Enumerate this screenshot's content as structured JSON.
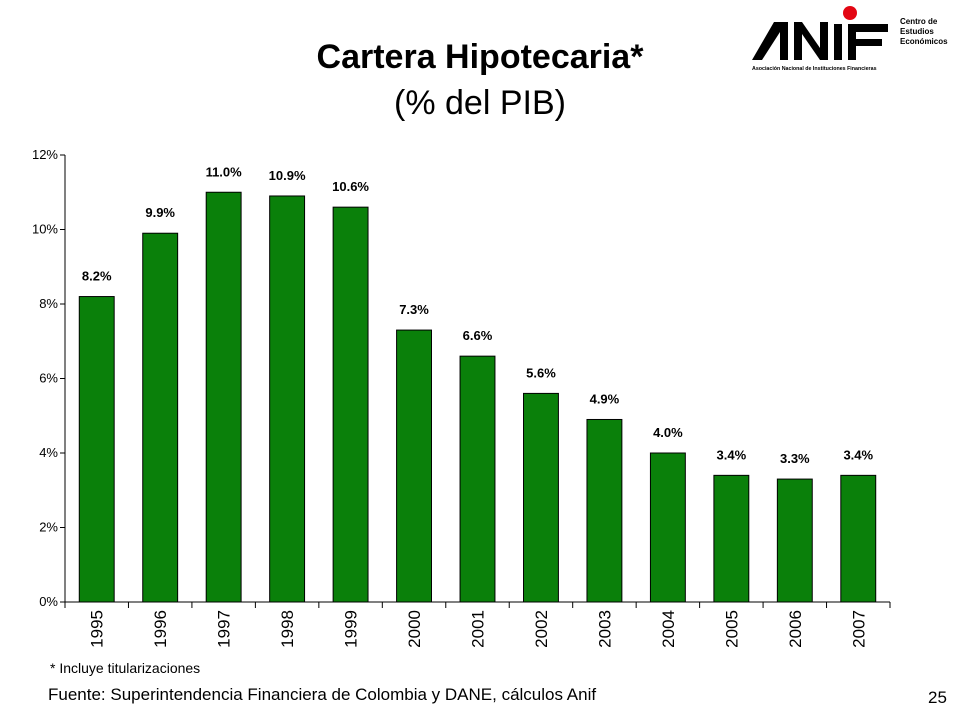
{
  "header": {
    "title": "Cartera Hipotecaria*",
    "subtitle": "(% del PIB)"
  },
  "logo": {
    "name": "ANIF",
    "tagline": "Asociación Nacional de Instituciones Financieras",
    "unit_line1": "Centro de",
    "unit_line2": "Estudios",
    "unit_line3": "Económicos",
    "dot_color": "#e30613"
  },
  "chart_data": {
    "type": "bar",
    "title": "Cartera Hipotecaria*",
    "subtitle": "(% del PIB)",
    "categories": [
      "1995",
      "1996",
      "1997",
      "1998",
      "1999",
      "2000",
      "2001",
      "2002",
      "2003",
      "2004",
      "2005",
      "2006",
      "2007"
    ],
    "values": [
      8.2,
      9.9,
      11.0,
      10.9,
      10.6,
      7.3,
      6.6,
      5.6,
      4.9,
      4.0,
      3.4,
      3.3,
      3.4
    ],
    "data_labels": [
      "8.2%",
      "9.9%",
      "11.0%",
      "10.9%",
      "10.6%",
      "7.3%",
      "6.6%",
      "5.6%",
      "4.9%",
      "4.0%",
      "3.4%",
      "3.3%",
      "3.4%"
    ],
    "yticks": [
      0,
      2,
      4,
      6,
      8,
      10,
      12
    ],
    "ytick_labels": [
      "0%",
      "2%",
      "4%",
      "6%",
      "8%",
      "10%",
      "12%"
    ],
    "ylim": [
      0,
      12
    ],
    "bar_color": "#0a800a",
    "grid": false,
    "legend": "none"
  },
  "footer": {
    "note": "* Incluye titularizaciones",
    "source": "Fuente: Superintendencia Financiera de Colombia y DANE, cálculos Anif",
    "page_number": "25"
  }
}
